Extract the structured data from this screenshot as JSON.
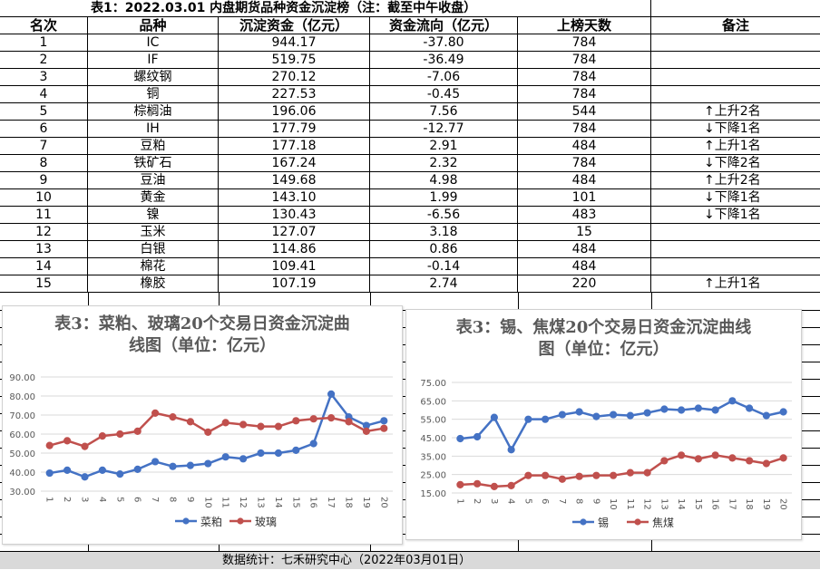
{
  "table": {
    "title": "表1：2022.03.01 内盘期货品种资金沉淀榜（注：截至中午收盘）",
    "headers": [
      "名次",
      "品种",
      "沉淀资金（亿元）",
      "资金流向（亿元）",
      "上榜天数",
      "备注"
    ],
    "rows": [
      {
        "rank": "1",
        "name": "IC",
        "fund": "944.17",
        "flow": "-37.80",
        "days": "784",
        "note": ""
      },
      {
        "rank": "2",
        "name": "IF",
        "fund": "519.75",
        "flow": "-36.49",
        "days": "784",
        "note": ""
      },
      {
        "rank": "3",
        "name": "螺纹钢",
        "fund": "270.12",
        "flow": "-7.06",
        "days": "784",
        "note": ""
      },
      {
        "rank": "4",
        "name": "铜",
        "fund": "227.53",
        "flow": "-0.45",
        "days": "784",
        "note": ""
      },
      {
        "rank": "5",
        "name": "棕榈油",
        "fund": "196.06",
        "flow": "7.56",
        "days": "544",
        "note": "↑上升2名"
      },
      {
        "rank": "6",
        "name": "IH",
        "fund": "177.79",
        "flow": "-12.77",
        "days": "784",
        "note": "↓下降1名"
      },
      {
        "rank": "7",
        "name": "豆粕",
        "fund": "177.18",
        "flow": "2.91",
        "days": "484",
        "note": "↑上升1名"
      },
      {
        "rank": "8",
        "name": "铁矿石",
        "fund": "167.24",
        "flow": "2.32",
        "days": "784",
        "note": "↓下降2名"
      },
      {
        "rank": "9",
        "name": "豆油",
        "fund": "149.68",
        "flow": "4.98",
        "days": "484",
        "note": "↑上升2名"
      },
      {
        "rank": "10",
        "name": "黄金",
        "fund": "143.10",
        "flow": "1.99",
        "days": "101",
        "note": "↓下降1名"
      },
      {
        "rank": "11",
        "name": "镍",
        "fund": "130.43",
        "flow": "-6.56",
        "days": "483",
        "note": "↓下降1名"
      },
      {
        "rank": "12",
        "name": "玉米",
        "fund": "127.07",
        "flow": "3.18",
        "days": "15",
        "note": ""
      },
      {
        "rank": "13",
        "name": "白银",
        "fund": "114.86",
        "flow": "0.86",
        "days": "484",
        "note": ""
      },
      {
        "rank": "14",
        "name": "棉花",
        "fund": "109.41",
        "flow": "-0.14",
        "days": "484",
        "note": ""
      },
      {
        "rank": "15",
        "name": "橡胶",
        "fund": "107.19",
        "flow": "2.74",
        "days": "220",
        "note": "↑上升1名"
      }
    ]
  },
  "footer": {
    "text": "数据统计：七禾研究中心（2022年03月01日）"
  },
  "chart_data": [
    {
      "type": "line",
      "title": "表3：菜粕、玻璃20个交易日资金沉淀曲线图（单位：亿元）",
      "title_lines": [
        "表3：菜粕、玻璃20个交易日资金沉淀曲",
        "线图（单位：亿元）"
      ],
      "x": [
        "1",
        "2",
        "3",
        "4",
        "5",
        "6",
        "7",
        "8",
        "9",
        "10",
        "11",
        "12",
        "13",
        "14",
        "15",
        "16",
        "17",
        "18",
        "19",
        "20"
      ],
      "ylim": [
        30,
        90
      ],
      "yticks": [
        "30.00",
        "40.00",
        "50.00",
        "60.00",
        "70.00",
        "80.00",
        "90.00"
      ],
      "grid": true,
      "legend": "bottom",
      "series": [
        {
          "name": "菜粕",
          "color": "#4472c4",
          "values": [
            39.5,
            41,
            37.5,
            41,
            39,
            41.5,
            45.5,
            43,
            43.5,
            44.5,
            48,
            47,
            50,
            50,
            51.5,
            55,
            81,
            69,
            64.5,
            67
          ]
        },
        {
          "name": "玻璃",
          "color": "#c0504d",
          "values": [
            54,
            56.5,
            53.5,
            59,
            60,
            61.5,
            71,
            69,
            66.5,
            61,
            66,
            65,
            64,
            64,
            67,
            68,
            68.5,
            66.5,
            61.5,
            63
          ]
        }
      ]
    },
    {
      "type": "line",
      "title": "表3：锡、焦煤20个交易日资金沉淀曲线图（单位：亿元）",
      "title_lines": [
        "表3：锡、焦煤20个交易日资金沉淀曲线",
        "图（单位：亿元）"
      ],
      "x": [
        "1",
        "2",
        "3",
        "4",
        "5",
        "6",
        "7",
        "8",
        "9",
        "10",
        "11",
        "12",
        "13",
        "14",
        "15",
        "16",
        "17",
        "18",
        "19",
        "20"
      ],
      "ylim": [
        15,
        75
      ],
      "yticks": [
        "15.00",
        "25.00",
        "35.00",
        "45.00",
        "55.00",
        "65.00",
        "75.00"
      ],
      "grid": true,
      "legend": "bottom",
      "series": [
        {
          "name": "锡",
          "color": "#4472c4",
          "values": [
            44.5,
            45.5,
            56,
            38.5,
            55,
            55,
            57.5,
            59,
            56.5,
            57.5,
            57,
            58.5,
            60.5,
            60,
            61,
            60,
            65,
            61,
            57,
            59
          ]
        },
        {
          "name": "焦煤",
          "color": "#c0504d",
          "values": [
            19.5,
            20,
            18.5,
            19,
            24.5,
            24.5,
            22.5,
            24,
            24.5,
            24.5,
            26,
            26,
            32.5,
            35.5,
            33.5,
            35.5,
            34,
            32.5,
            31,
            34
          ]
        }
      ]
    }
  ]
}
